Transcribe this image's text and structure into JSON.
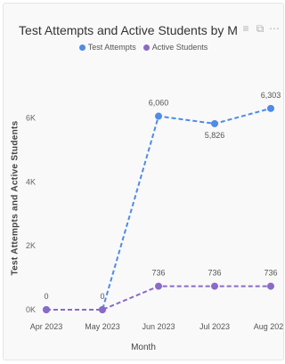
{
  "chart_data": {
    "type": "line",
    "title": "Test Attempts and Active Students by M",
    "xlabel": "Month",
    "ylabel": "Test Attempts and Active Students",
    "categories": [
      "Apr 2023",
      "May 2023",
      "Jun 2023",
      "Jul 2023",
      "Aug 2023"
    ],
    "yticks": [
      "0K",
      "2K",
      "4K",
      "6K"
    ],
    "ytick_values": [
      0,
      2000,
      4000,
      6000
    ],
    "ylim": [
      0,
      6800
    ],
    "grid": false,
    "legend_position": "top-center",
    "series": [
      {
        "name": "Test Attempts",
        "color": "#4f8be8",
        "values": [
          0,
          0,
          6060,
          5826,
          6303
        ],
        "labels": [
          "",
          "",
          "6,060",
          "5,826",
          "6,303"
        ]
      },
      {
        "name": "Active Students",
        "color": "#8a6ac8",
        "values": [
          0,
          0,
          736,
          736,
          736
        ],
        "labels": [
          "0",
          "0",
          "736",
          "736",
          "736"
        ]
      }
    ]
  },
  "toolbar": {
    "icons": [
      "filter-icon",
      "focus-mode-icon",
      "more-options-icon"
    ],
    "filter_glyph": "≡",
    "focus_glyph": "⧉",
    "more_glyph": "⋯"
  }
}
